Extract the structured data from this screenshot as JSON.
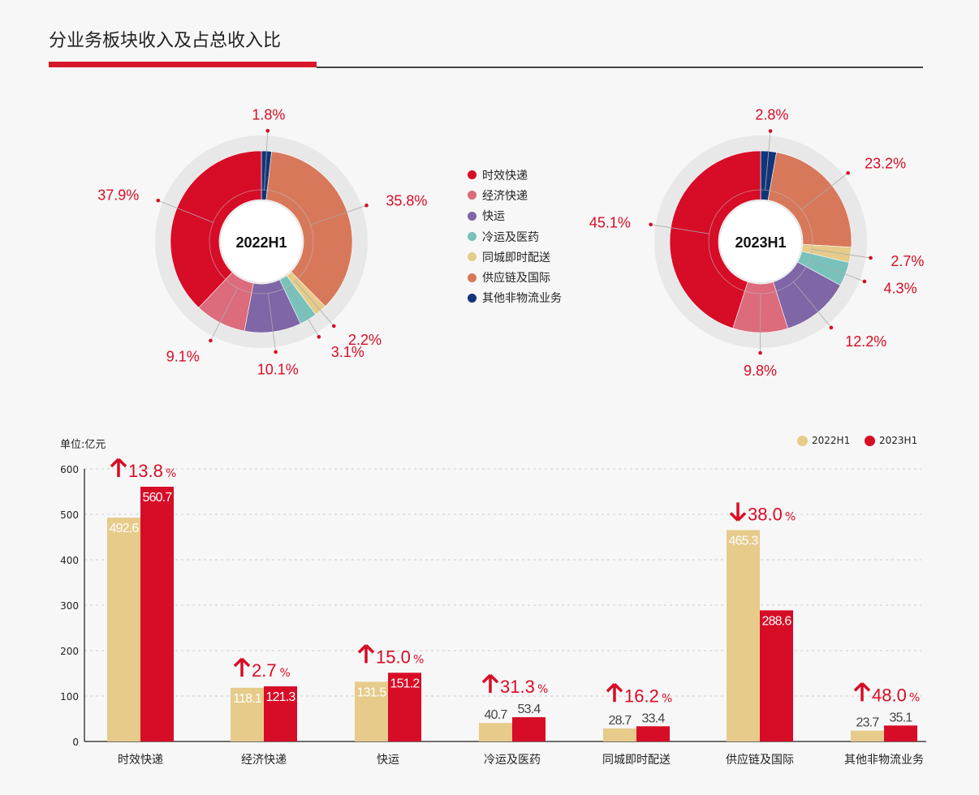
{
  "title": "分业务板块收入及占总收入比",
  "colors": {
    "time": "#d70c26",
    "economy": "#dc6b7c",
    "freight": "#7f66a6",
    "cold": "#79c1bb",
    "city": "#e6cb8a",
    "supply": "#d8785a",
    "other": "#12357a",
    "label": "#d70c26"
  },
  "legend": [
    {
      "label": "时效快递",
      "key": "time"
    },
    {
      "label": "经济快递",
      "key": "economy"
    },
    {
      "label": "快运",
      "key": "freight"
    },
    {
      "label": "冷运及医药",
      "key": "cold"
    },
    {
      "label": "同城即时配送",
      "key": "city"
    },
    {
      "label": "供应链及国际",
      "key": "supply"
    },
    {
      "label": "其他非物流业务",
      "key": "other"
    }
  ],
  "chart_data": [
    {
      "type": "pie",
      "title": "2022H1",
      "slices": [
        {
          "key": "other",
          "value": 1.8,
          "label": "1.8%"
        },
        {
          "key": "supply",
          "value": 35.8,
          "label": "35.8%"
        },
        {
          "key": "city",
          "value": 2.2,
          "label": "2.2%"
        },
        {
          "key": "cold",
          "value": 3.1,
          "label": "3.1%"
        },
        {
          "key": "freight",
          "value": 10.1,
          "label": "10.1%"
        },
        {
          "key": "economy",
          "value": 9.1,
          "label": "9.1%"
        },
        {
          "key": "time",
          "value": 37.9,
          "label": "37.9%"
        }
      ]
    },
    {
      "type": "pie",
      "title": "2023H1",
      "slices": [
        {
          "key": "other",
          "value": 2.8,
          "label": "2.8%"
        },
        {
          "key": "supply",
          "value": 23.2,
          "label": "23.2%"
        },
        {
          "key": "city",
          "value": 2.7,
          "label": "2.7%"
        },
        {
          "key": "cold",
          "value": 4.3,
          "label": "4.3%"
        },
        {
          "key": "freight",
          "value": 12.2,
          "label": "12.2%"
        },
        {
          "key": "economy",
          "value": 9.8,
          "label": "9.8%"
        },
        {
          "key": "time",
          "value": 45.1,
          "label": "45.1%"
        }
      ]
    },
    {
      "type": "bar",
      "unit": "单位:亿元",
      "ylim": [
        0,
        600
      ],
      "yticks": [
        "0",
        "100",
        "200",
        "300",
        "400",
        "500",
        "600"
      ],
      "categories": [
        "时效快递",
        "经济快递",
        "快运",
        "冷运及医药",
        "同城即时配送",
        "供应链及国际",
        "其他非物流业务"
      ],
      "series": [
        {
          "name": "2022H1",
          "color": "#e6cb8a",
          "values": [
            492.6,
            118.1,
            131.5,
            40.7,
            28.7,
            465.3,
            23.7
          ],
          "labels": [
            "492.6",
            "118.1",
            "131.5",
            "40.7",
            "28.7",
            "465.3",
            "23.7"
          ]
        },
        {
          "name": "2023H1",
          "color": "#d70c26",
          "values": [
            560.7,
            121.3,
            151.2,
            53.4,
            33.4,
            288.6,
            35.1
          ],
          "labels": [
            "560.7",
            "121.3",
            "151.2",
            "53.4",
            "33.4",
            "288.6",
            "35.1"
          ]
        }
      ],
      "changes": [
        {
          "dir": "up",
          "value": "13.8",
          "pct": "%"
        },
        {
          "dir": "up",
          "value": "2.7",
          "pct": "%"
        },
        {
          "dir": "up",
          "value": "15.0",
          "pct": "%"
        },
        {
          "dir": "up",
          "value": "31.3",
          "pct": "%"
        },
        {
          "dir": "up",
          "value": "16.2",
          "pct": "%"
        },
        {
          "dir": "down",
          "value": "38.0",
          "pct": "%"
        },
        {
          "dir": "up",
          "value": "48.0",
          "pct": "%"
        }
      ]
    }
  ]
}
